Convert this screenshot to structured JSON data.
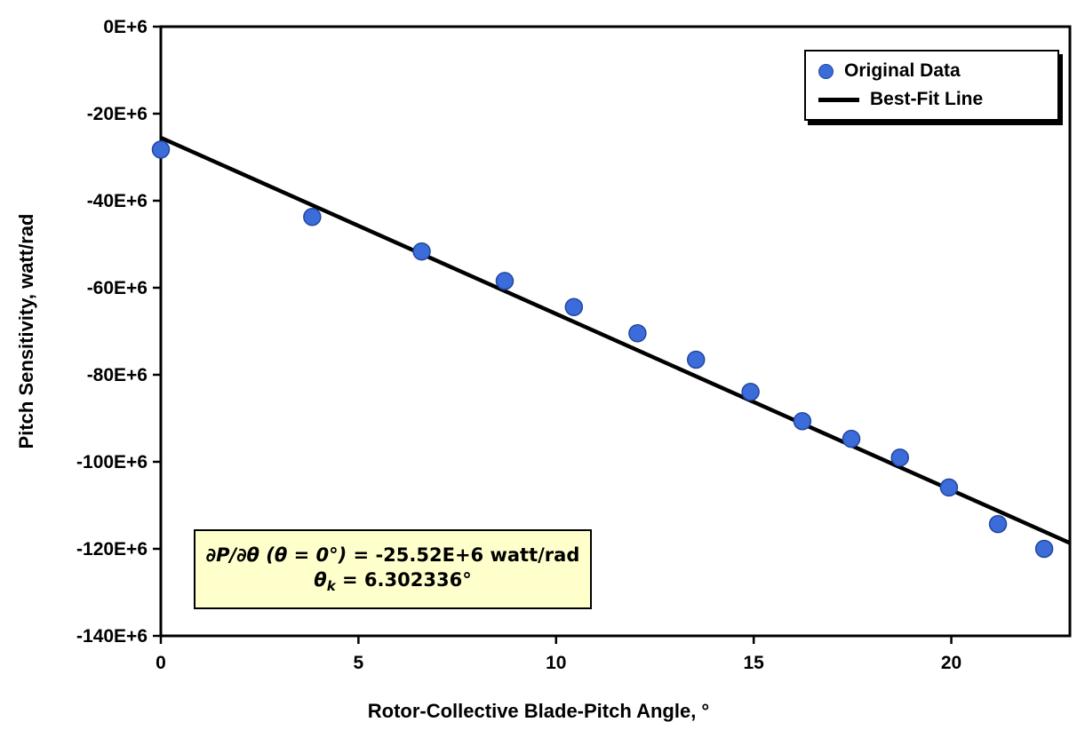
{
  "chart_data": {
    "type": "scatter",
    "title": "",
    "xlabel": "Rotor-Collective Blade-Pitch Angle, °",
    "ylabel": "Pitch Sensitivity, watt/rad",
    "y_unit": "E+6 watt/rad",
    "xlim": [
      0,
      23
    ],
    "ylim": [
      -140,
      0
    ],
    "grid": false,
    "legend_position": "top-right",
    "x_ticks": [
      {
        "value": 0,
        "label": "0"
      },
      {
        "value": 5,
        "label": "5"
      },
      {
        "value": 10,
        "label": "10"
      },
      {
        "value": 15,
        "label": "15"
      },
      {
        "value": 20,
        "label": "20"
      }
    ],
    "y_ticks": [
      {
        "value": 0,
        "label": "0E+6"
      },
      {
        "value": -20,
        "label": "-20E+6"
      },
      {
        "value": -40,
        "label": "-40E+6"
      },
      {
        "value": -60,
        "label": "-60E+6"
      },
      {
        "value": -80,
        "label": "-80E+6"
      },
      {
        "value": -100,
        "label": "-100E+6"
      },
      {
        "value": -120,
        "label": "-120E+6"
      },
      {
        "value": -140,
        "label": "-140E+6"
      }
    ],
    "series": [
      {
        "name": "Original Data",
        "type": "scatter",
        "marker_color": "#3B6CD9",
        "marker_edge": "#23479E",
        "points": [
          {
            "x": 0.0,
            "y": -28.24
          },
          {
            "x": 3.83,
            "y": -43.73
          },
          {
            "x": 6.6,
            "y": -51.66
          },
          {
            "x": 8.7,
            "y": -58.44
          },
          {
            "x": 10.45,
            "y": -64.44
          },
          {
            "x": 12.06,
            "y": -70.46
          },
          {
            "x": 13.54,
            "y": -76.53
          },
          {
            "x": 14.92,
            "y": -83.94
          },
          {
            "x": 16.23,
            "y": -90.67
          },
          {
            "x": 17.47,
            "y": -94.71
          },
          {
            "x": 18.7,
            "y": -99.04
          },
          {
            "x": 19.94,
            "y": -105.9
          },
          {
            "x": 21.18,
            "y": -114.3
          },
          {
            "x": 22.35,
            "y": -120.0
          }
        ]
      },
      {
        "name": "Best-Fit Line",
        "type": "line",
        "color": "#000000"
      }
    ],
    "fit": {
      "intercept_e6": -25.52,
      "theta_k_deg": 6.302336,
      "x_range": [
        0,
        23
      ]
    }
  },
  "axes": {
    "x_title": "Rotor-Collective Blade-Pitch Angle, °",
    "y_title": "Pitch Sensitivity, watt/rad"
  },
  "annotation": {
    "line1_math": "∂P/∂θ (θ = 0°)",
    "line1_rest": " = -25.52E+6 watt/rad",
    "line2_sym": "θ",
    "line2_sub": "k",
    "line2_rest": " = 6.302336°",
    "background": "#FFFFCC"
  }
}
